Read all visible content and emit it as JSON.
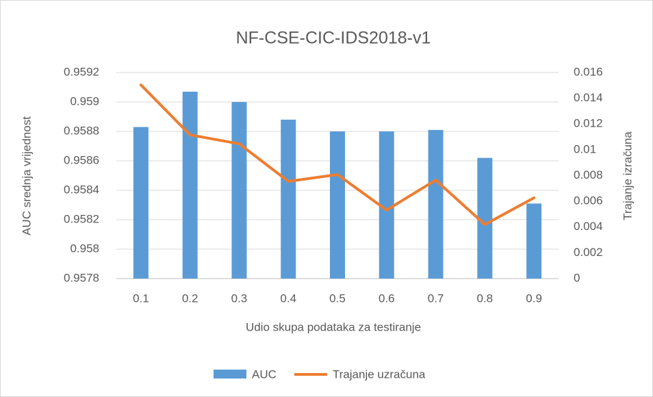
{
  "chart_data": {
    "type": "bar_line",
    "title": "NF-CSE-CIC-IDS2018-v1",
    "x_label": "Udio skupa podataka za testiranje",
    "y_label": "AUC srednja vrijednost",
    "y2_label": "Trajanje izračuna",
    "categories": [
      "0.1",
      "0.2",
      "0.3",
      "0.4",
      "0.5",
      "0.6",
      "0.7",
      "0.8",
      "0.9"
    ],
    "series": [
      {
        "name": "AUC",
        "type": "bar",
        "color": "#5b9bd5",
        "axis": "y",
        "values": [
          0.95883,
          0.95907,
          0.959,
          0.95888,
          0.9588,
          0.9588,
          0.95881,
          0.95862,
          0.95831
        ]
      },
      {
        "name": "Trajanje uzračuna",
        "type": "line",
        "color": "#ed7d31",
        "axis": "y2",
        "values": [
          0.01504,
          0.01116,
          0.01047,
          0.00755,
          0.00808,
          0.00532,
          0.00765,
          0.0042,
          0.00627
        ]
      }
    ],
    "ylim": [
      0.9578,
      0.9592
    ],
    "yticks": [
      0.9578,
      0.958,
      0.9582,
      0.9584,
      0.9586,
      0.9588,
      0.959,
      0.9592
    ],
    "y2lim": [
      0,
      0.016
    ],
    "y2ticks": [
      0,
      0.002,
      0.004,
      0.006,
      0.008,
      0.01,
      0.012,
      0.014,
      0.016
    ],
    "grid": true,
    "legend": "bottom"
  }
}
